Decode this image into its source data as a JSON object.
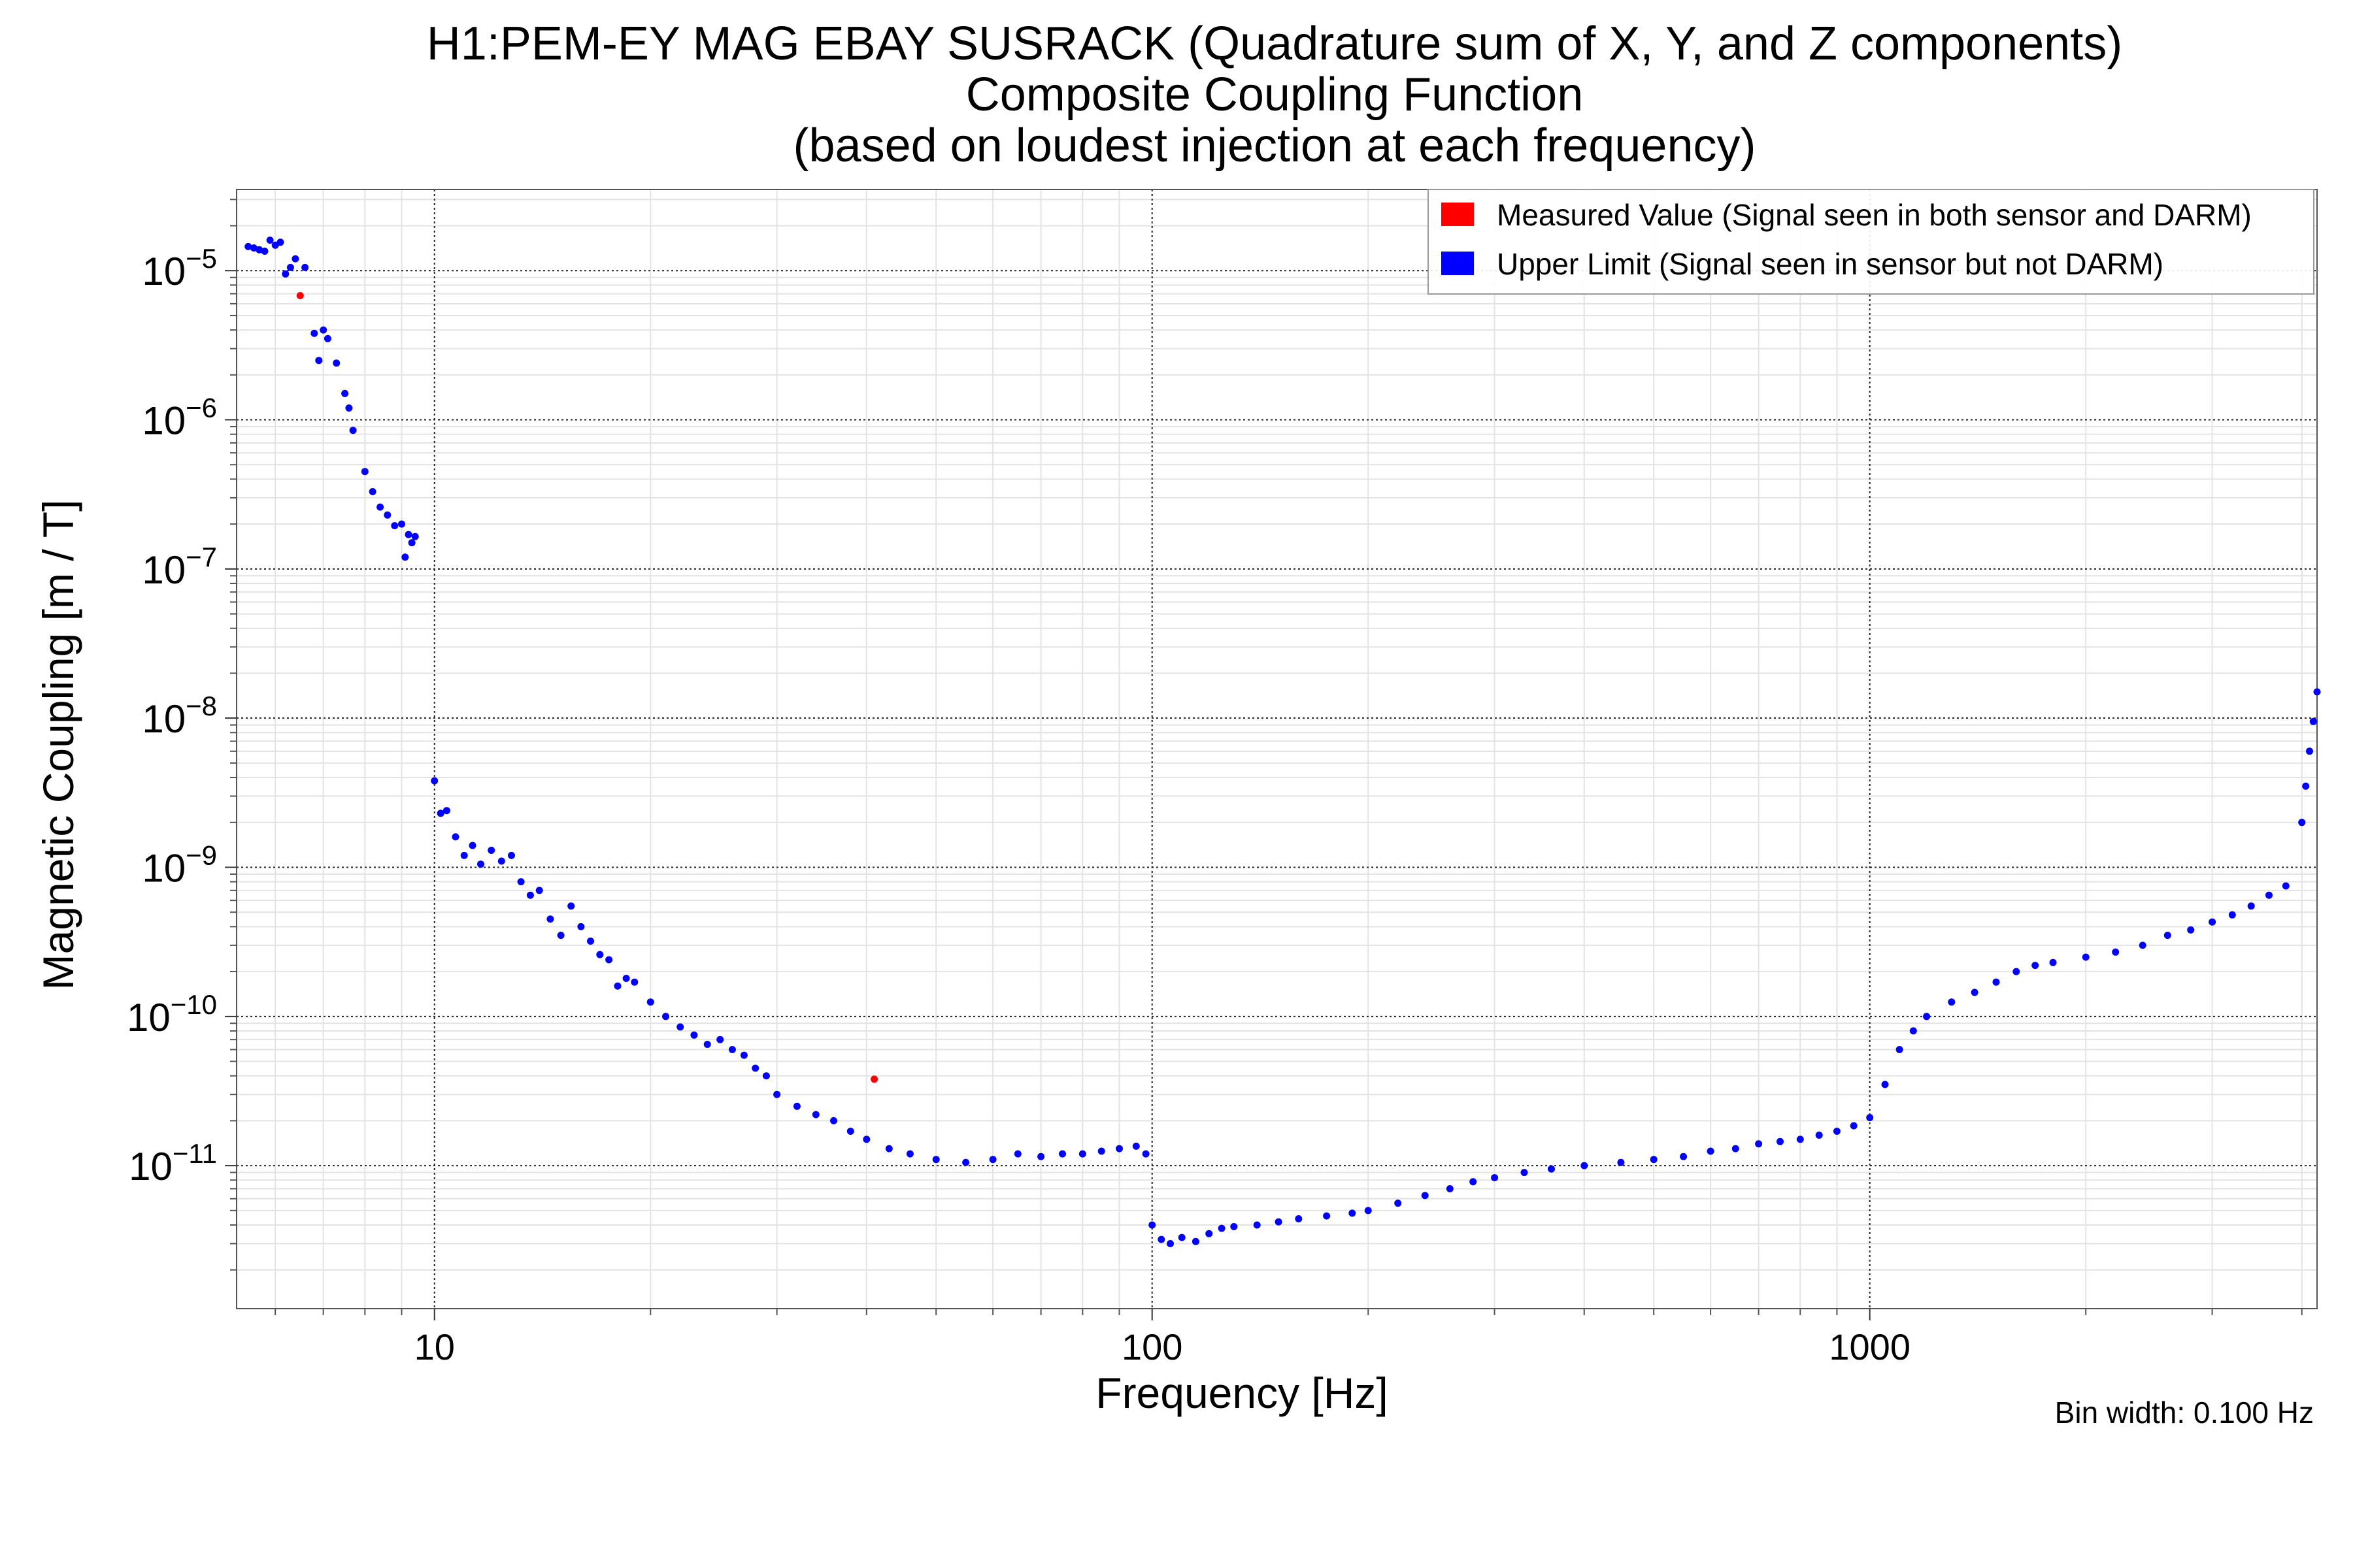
{
  "chart_data": {
    "type": "scatter",
    "title": [
      "H1:PEM-EY MAG EBAY SUSRACK (Quadrature sum of X, Y, and Z components)",
      "Composite Coupling Function",
      "(based on loudest injection at each frequency)"
    ],
    "xlabel": "Frequency [Hz]",
    "ylabel": "Magnetic Coupling [m / T]",
    "xscale": "log",
    "yscale": "log",
    "xlim": [
      5.3,
      4200
    ],
    "ylim": [
      1.1e-12,
      3.5e-05
    ],
    "xticks": [
      {
        "value": 10,
        "label": "10"
      },
      {
        "value": 100,
        "label": "100"
      },
      {
        "value": 1000,
        "label": "1000"
      }
    ],
    "yticks": [
      {
        "value": 1e-05,
        "base": "10",
        "exp": "−5"
      },
      {
        "value": 1e-06,
        "base": "10",
        "exp": "−6"
      },
      {
        "value": 1e-07,
        "base": "10",
        "exp": "−7"
      },
      {
        "value": 1e-08,
        "base": "10",
        "exp": "−8"
      },
      {
        "value": 1e-09,
        "base": "10",
        "exp": "−9"
      },
      {
        "value": 1e-10,
        "base": "10",
        "exp": "−10"
      },
      {
        "value": 1e-11,
        "base": "10",
        "exp": "−11"
      }
    ],
    "grid": true,
    "legend_position": "top-right",
    "annotation": "Bin width: 0.100 Hz",
    "series": [
      {
        "name": "Measured Value (Signal seen in both sensor and DARM)",
        "color": "#ff0000",
        "points": [
          [
            6.5,
            6.8e-06
          ],
          [
            41,
            3.8e-11
          ]
        ]
      },
      {
        "name": "Upper Limit (Signal seen in sensor but not DARM)",
        "color": "#0000ff",
        "points": [
          [
            5.5,
            1.45e-05
          ],
          [
            5.6,
            1.42e-05
          ],
          [
            5.7,
            1.38e-05
          ],
          [
            5.8,
            1.35e-05
          ],
          [
            5.9,
            1.6e-05
          ],
          [
            6.0,
            1.48e-05
          ],
          [
            6.1,
            1.55e-05
          ],
          [
            6.2,
            9.5e-06
          ],
          [
            6.3,
            1.05e-05
          ],
          [
            6.4,
            1.2e-05
          ],
          [
            6.6,
            1.05e-05
          ],
          [
            6.8,
            3.8e-06
          ],
          [
            6.9,
            2.5e-06
          ],
          [
            7.0,
            4e-06
          ],
          [
            7.1,
            3.5e-06
          ],
          [
            7.3,
            2.4e-06
          ],
          [
            7.5,
            1.5e-06
          ],
          [
            7.6,
            1.2e-06
          ],
          [
            7.7,
            8.5e-07
          ],
          [
            8.0,
            4.5e-07
          ],
          [
            8.2,
            3.3e-07
          ],
          [
            8.4,
            2.6e-07
          ],
          [
            8.6,
            2.3e-07
          ],
          [
            8.8,
            1.95e-07
          ],
          [
            9.0,
            2e-07
          ],
          [
            9.1,
            1.2e-07
          ],
          [
            9.2,
            1.7e-07
          ],
          [
            9.3,
            1.5e-07
          ],
          [
            9.4,
            1.65e-07
          ],
          [
            10.0,
            3.8e-09
          ],
          [
            10.2,
            2.3e-09
          ],
          [
            10.4,
            2.4e-09
          ],
          [
            10.7,
            1.6e-09
          ],
          [
            11.0,
            1.2e-09
          ],
          [
            11.3,
            1.4e-09
          ],
          [
            11.6,
            1.05e-09
          ],
          [
            12.0,
            1.3e-09
          ],
          [
            12.4,
            1.1e-09
          ],
          [
            12.8,
            1.2e-09
          ],
          [
            13.2,
            8e-10
          ],
          [
            13.6,
            6.5e-10
          ],
          [
            14.0,
            7e-10
          ],
          [
            14.5,
            4.5e-10
          ],
          [
            15.0,
            3.5e-10
          ],
          [
            15.5,
            5.5e-10
          ],
          [
            16.0,
            4e-10
          ],
          [
            16.5,
            3.2e-10
          ],
          [
            17.0,
            2.6e-10
          ],
          [
            17.5,
            2.4e-10
          ],
          [
            18.0,
            1.6e-10
          ],
          [
            18.5,
            1.8e-10
          ],
          [
            19.0,
            1.7e-10
          ],
          [
            20.0,
            1.25e-10
          ],
          [
            21.0,
            1e-10
          ],
          [
            22.0,
            8.5e-11
          ],
          [
            23.0,
            7.5e-11
          ],
          [
            24.0,
            6.5e-11
          ],
          [
            25.0,
            7e-11
          ],
          [
            26.0,
            6e-11
          ],
          [
            27.0,
            5.5e-11
          ],
          [
            28.0,
            4.5e-11
          ],
          [
            29.0,
            4e-11
          ],
          [
            30.0,
            3e-11
          ],
          [
            32.0,
            2.5e-11
          ],
          [
            34.0,
            2.2e-11
          ],
          [
            36.0,
            2e-11
          ],
          [
            38.0,
            1.7e-11
          ],
          [
            40.0,
            1.5e-11
          ],
          [
            43.0,
            1.3e-11
          ],
          [
            46.0,
            1.2e-11
          ],
          [
            50.0,
            1.1e-11
          ],
          [
            55.0,
            1.05e-11
          ],
          [
            60.0,
            1.1e-11
          ],
          [
            65.0,
            1.2e-11
          ],
          [
            70.0,
            1.15e-11
          ],
          [
            75.0,
            1.2e-11
          ],
          [
            80.0,
            1.2e-11
          ],
          [
            85.0,
            1.25e-11
          ],
          [
            90.0,
            1.3e-11
          ],
          [
            95.0,
            1.35e-11
          ],
          [
            98.0,
            1.2e-11
          ],
          [
            100.0,
            4e-12
          ],
          [
            103.0,
            3.2e-12
          ],
          [
            106.0,
            3e-12
          ],
          [
            110.0,
            3.3e-12
          ],
          [
            115.0,
            3.1e-12
          ],
          [
            120.0,
            3.5e-12
          ],
          [
            125.0,
            3.8e-12
          ],
          [
            130.0,
            3.9e-12
          ],
          [
            140.0,
            4e-12
          ],
          [
            150.0,
            4.2e-12
          ],
          [
            160.0,
            4.4e-12
          ],
          [
            175.0,
            4.6e-12
          ],
          [
            190.0,
            4.8e-12
          ],
          [
            200.0,
            5e-12
          ],
          [
            220.0,
            5.6e-12
          ],
          [
            240.0,
            6.3e-12
          ],
          [
            260.0,
            7e-12
          ],
          [
            280.0,
            7.8e-12
          ],
          [
            300.0,
            8.3e-12
          ],
          [
            330.0,
            9e-12
          ],
          [
            360.0,
            9.5e-12
          ],
          [
            400.0,
            1e-11
          ],
          [
            450.0,
            1.05e-11
          ],
          [
            500.0,
            1.1e-11
          ],
          [
            550.0,
            1.15e-11
          ],
          [
            600.0,
            1.25e-11
          ],
          [
            650.0,
            1.3e-11
          ],
          [
            700.0,
            1.4e-11
          ],
          [
            750.0,
            1.45e-11
          ],
          [
            800.0,
            1.5e-11
          ],
          [
            850.0,
            1.6e-11
          ],
          [
            900.0,
            1.7e-11
          ],
          [
            950.0,
            1.85e-11
          ],
          [
            1000.0,
            2.1e-11
          ],
          [
            1050.0,
            3.5e-11
          ],
          [
            1100.0,
            6e-11
          ],
          [
            1150.0,
            8e-11
          ],
          [
            1200.0,
            1e-10
          ],
          [
            1300.0,
            1.25e-10
          ],
          [
            1400.0,
            1.45e-10
          ],
          [
            1500.0,
            1.7e-10
          ],
          [
            1600.0,
            2e-10
          ],
          [
            1700.0,
            2.2e-10
          ],
          [
            1800.0,
            2.3e-10
          ],
          [
            2000.0,
            2.5e-10
          ],
          [
            2200.0,
            2.7e-10
          ],
          [
            2400.0,
            3e-10
          ],
          [
            2600.0,
            3.5e-10
          ],
          [
            2800.0,
            3.8e-10
          ],
          [
            3000.0,
            4.3e-10
          ],
          [
            3200.0,
            4.8e-10
          ],
          [
            3400.0,
            5.5e-10
          ],
          [
            3600.0,
            6.5e-10
          ],
          [
            3800.0,
            7.5e-10
          ],
          [
            4000.0,
            2e-09
          ],
          [
            4050.0,
            3.5e-09
          ],
          [
            4100.0,
            6e-09
          ],
          [
            4150.0,
            9.5e-09
          ],
          [
            4200.0,
            1.5e-08
          ]
        ]
      }
    ]
  }
}
